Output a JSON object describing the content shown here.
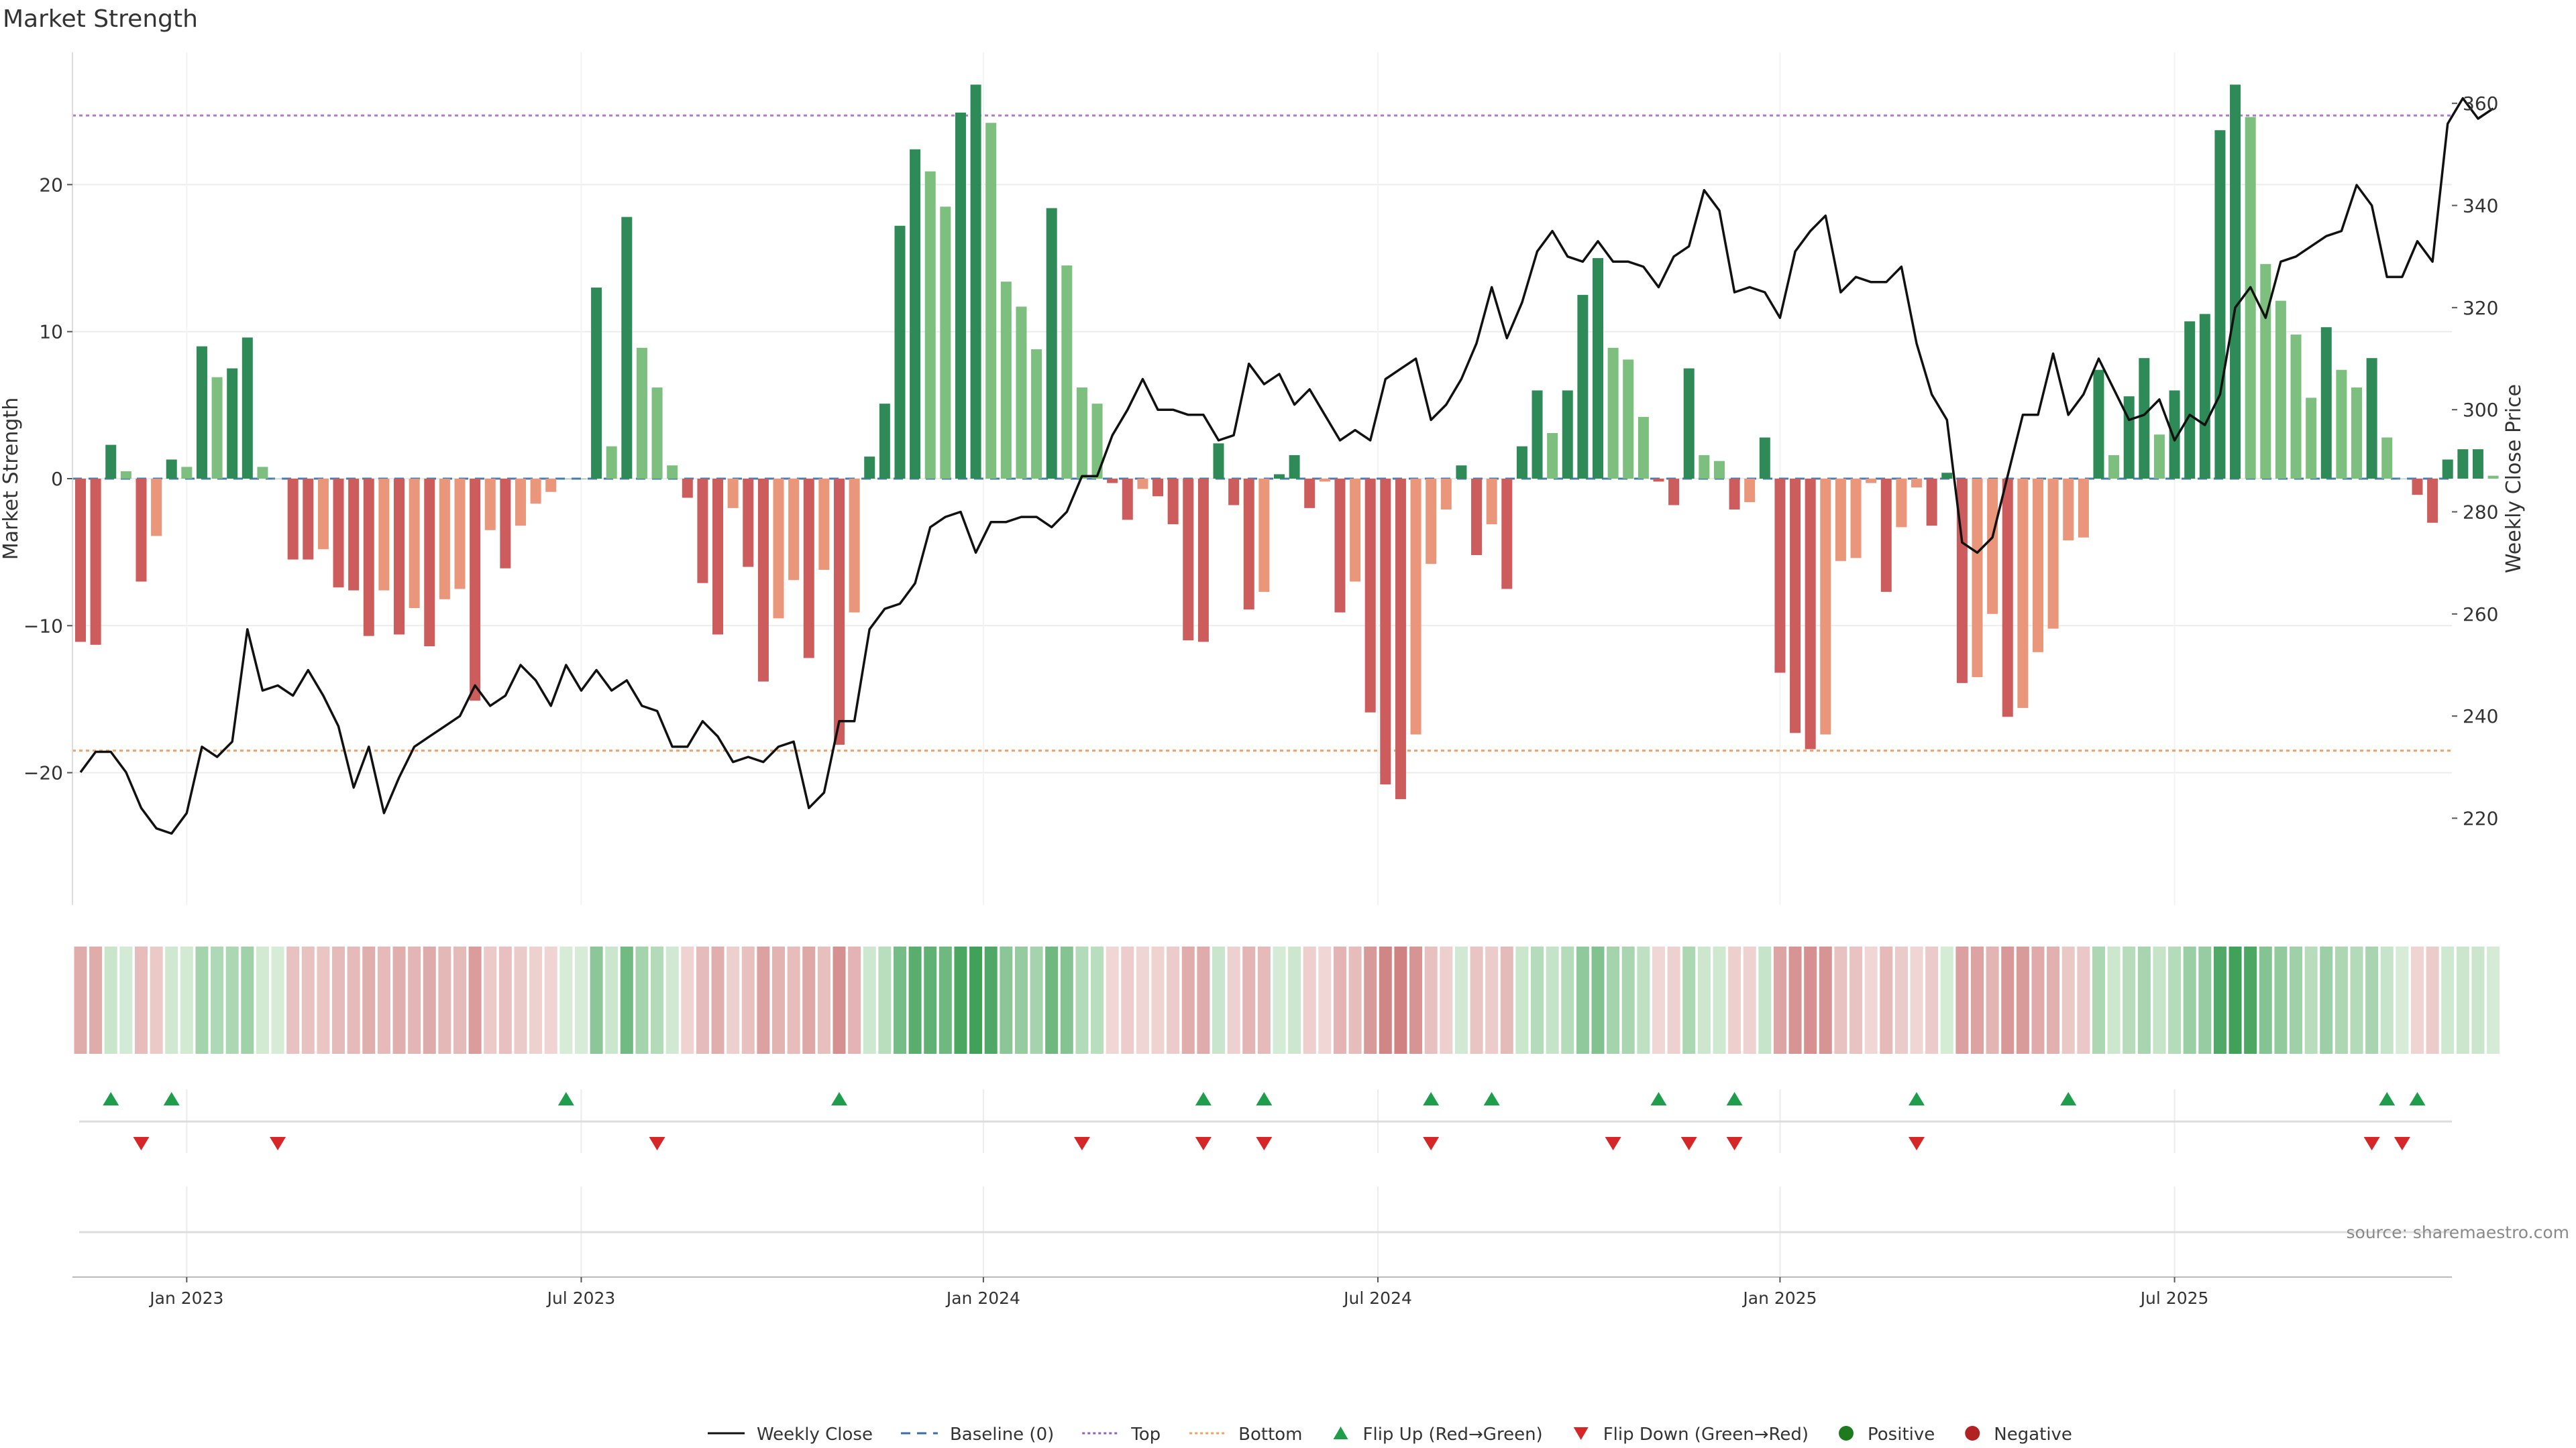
{
  "chart_data": {
    "type": "bar",
    "title": "Market Strength",
    "ylabel": "Market Strength",
    "y2label": "Weekly Close Price",
    "ylim": [
      -29,
      29
    ],
    "y2lim": [
      203,
      370
    ],
    "yticks": [
      -20,
      -10,
      0,
      10,
      20
    ],
    "y2ticks": [
      220,
      240,
      260,
      280,
      300,
      320,
      340,
      360
    ],
    "top_line": 24.7,
    "bottom_line": -18.5,
    "x_ticks": [
      {
        "label": "Jan 2023",
        "week": 7
      },
      {
        "label": "Jul 2023",
        "week": 33
      },
      {
        "label": "Jan 2024",
        "week": 59.5
      },
      {
        "label": "Jul 2024",
        "week": 85.5
      },
      {
        "label": "Jan 2025",
        "week": 112
      },
      {
        "label": "Jul 2025",
        "week": 138
      }
    ],
    "strength": [
      -11.1,
      -11.3,
      2.3,
      0.5,
      -7.0,
      -3.9,
      1.3,
      0.8,
      9.0,
      6.9,
      7.5,
      9.6,
      0.8,
      0,
      -5.5,
      -5.5,
      -4.8,
      -7.4,
      -7.6,
      -10.7,
      -7.6,
      -10.6,
      -8.8,
      -11.4,
      -8.2,
      -7.5,
      -15.1,
      -3.5,
      -6.1,
      -3.2,
      -1.7,
      -0.9,
      0,
      0,
      13.0,
      2.2,
      17.8,
      8.9,
      6.2,
      0.9,
      -1.3,
      -7.1,
      -10.6,
      -2.0,
      -6.0,
      -13.8,
      -9.5,
      -6.9,
      -12.2,
      -6.2,
      -18.1,
      -9.1,
      1.5,
      5.1,
      17.2,
      22.4,
      20.9,
      18.5,
      24.9,
      26.8,
      24.2,
      13.4,
      11.7,
      8.8,
      18.4,
      14.5,
      6.2,
      5.1,
      -0.3,
      -2.8,
      -0.7,
      -1.2,
      -3.1,
      -11.0,
      -11.1,
      2.4,
      -1.8,
      -8.9,
      -7.7,
      0.3,
      1.6,
      -2.0,
      -0.2,
      -9.1,
      -7.0,
      -15.9,
      -20.8,
      -21.8,
      -17.4,
      -5.8,
      -2.1,
      0.9,
      -5.2,
      -3.1,
      -7.5,
      2.2,
      6.0,
      3.1,
      6.0,
      12.5,
      15.0,
      8.9,
      8.1,
      4.2,
      -0.2,
      -1.8,
      7.5,
      1.6,
      1.2,
      -2.1,
      -1.6,
      2.8,
      -13.2,
      -17.3,
      -18.4,
      -17.4,
      -5.6,
      -5.4,
      -0.3,
      -7.7,
      -3.3,
      -0.6,
      -3.2,
      0.4,
      -13.9,
      -13.5,
      -9.2,
      -16.2,
      -15.6,
      -11.8,
      -10.2,
      -4.2,
      -4.0,
      7.4,
      1.6,
      5.6,
      8.2,
      3.0,
      6.0,
      10.7,
      11.2,
      23.7,
      26.8,
      24.6,
      14.6,
      12.1,
      9.8,
      5.5,
      10.3,
      7.4,
      6.2,
      8.2,
      2.8,
      0,
      -1.1,
      -3.0,
      1.3,
      2.0,
      2.0,
      0.2
    ],
    "price": [
      229,
      233,
      233,
      229,
      222,
      218,
      217,
      221,
      234,
      232,
      235,
      257,
      245,
      246,
      244,
      249,
      244,
      238,
      226,
      234,
      221,
      228,
      234,
      236,
      238,
      240,
      246,
      242,
      244,
      250,
      247,
      242,
      250,
      245,
      249,
      245,
      247,
      242,
      241,
      234,
      234,
      239,
      236,
      231,
      232,
      231,
      234,
      235,
      222,
      225,
      239,
      239,
      257,
      261,
      262,
      266,
      277,
      279,
      280,
      272,
      278,
      278,
      279,
      279,
      277,
      280,
      287,
      287,
      295,
      300,
      306,
      300,
      300,
      299,
      299,
      294,
      295,
      309,
      305,
      307,
      301,
      304,
      299,
      294,
      296,
      294,
      306,
      308,
      310,
      298,
      301,
      306,
      313,
      324,
      314,
      321,
      331,
      335,
      330,
      329,
      333,
      329,
      329,
      328,
      324,
      330,
      332,
      343,
      339,
      323,
      324,
      323,
      318,
      331,
      335,
      338,
      323,
      326,
      325,
      325,
      328,
      313,
      303,
      298,
      274,
      272,
      275,
      287,
      299,
      299,
      311,
      299,
      303,
      310,
      304,
      298,
      299,
      302,
      294,
      299,
      297,
      303,
      320,
      324,
      318,
      329,
      330,
      332,
      334,
      335,
      344,
      340,
      326,
      326,
      333,
      329,
      356,
      361,
      357,
      359
    ],
    "flip_up": [
      2,
      6,
      32,
      50,
      74,
      78,
      89,
      93,
      104,
      109,
      121,
      131,
      152,
      154
    ],
    "flip_down": [
      4,
      13,
      38,
      66,
      74,
      78,
      89,
      101,
      106,
      109,
      121,
      151,
      153
    ],
    "source": "source: sharemaestro.com",
    "legend": [
      {
        "label": "Weekly Close",
        "kind": "line",
        "color": "#111111"
      },
      {
        "label": "Baseline (0)",
        "kind": "dash",
        "color": "#3a6ea5"
      },
      {
        "label": "Top",
        "kind": "dot",
        "color": "#9b59b6"
      },
      {
        "label": "Bottom",
        "kind": "dot",
        "color": "#f0a060"
      },
      {
        "label": "Flip Up (Red→Green)",
        "kind": "tri-up",
        "color": "#1e9e4a"
      },
      {
        "label": "Flip Down (Green→Red)",
        "kind": "tri-down",
        "color": "#d62728"
      },
      {
        "label": "Positive",
        "kind": "circle",
        "color": "#1f7a1f"
      },
      {
        "label": "Negative",
        "kind": "circle",
        "color": "#b22222"
      }
    ]
  }
}
